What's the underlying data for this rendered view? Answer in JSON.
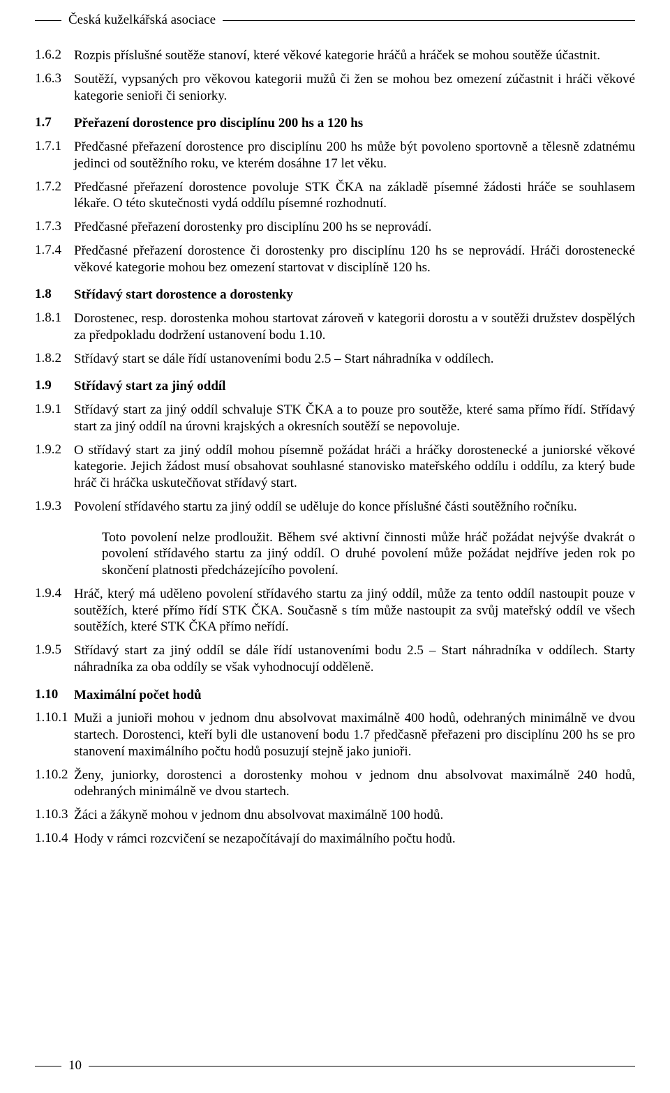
{
  "header": {
    "org": "Česká kuželkářská asociace"
  },
  "items": [
    {
      "num": "1.6.2",
      "text": "Rozpis příslušné soutěže stanoví, které věkové kategorie hráčů a hráček se mohou soutěže účastnit.",
      "style": "normal"
    },
    {
      "num": "1.6.3",
      "text": "Soutěží, vypsaných pro věkovou kategorii mužů či žen se mohou bez omezení zúčastnit i hráči věkové kategorie senioři či seniorky.",
      "style": "normal"
    },
    {
      "num": "1.7",
      "text": "Přeřazení dorostence pro disciplínu 200 hs a 120 hs",
      "style": "bold heading"
    },
    {
      "num": "1.7.1",
      "text": "Předčasné přeřazení dorostence pro disciplínu 200 hs může být povoleno sportovně a tělesně zdatnému jedinci od soutěžního roku, ve kterém dosáhne 17 let věku.",
      "style": "normal"
    },
    {
      "num": "1.7.2",
      "text": "Předčasné přeřazení dorostence povoluje STK ČKA na základě písemné žádosti hráče se souhlasem lékaře. O této skutečnosti vydá oddílu písemné rozhodnutí.",
      "style": "normal"
    },
    {
      "num": "1.7.3",
      "text": "Předčasné přeřazení dorostenky pro disciplínu 200 hs se neprovádí.",
      "style": "normal"
    },
    {
      "num": "1.7.4",
      "text": "Předčasné přeřazení dorostence či dorostenky pro disciplínu 120 hs se neprovádí. Hráči dorostenecké věkové kategorie mohou bez omezení startovat v disciplíně 120 hs.",
      "style": "normal"
    },
    {
      "num": "1.8",
      "text": "Střídavý start dorostence a dorostenky",
      "style": "bold heading"
    },
    {
      "num": "1.8.1",
      "text": "Dorostenec, resp. dorostenka mohou startovat zároveň v kategorii dorostu a v soutěži družstev dospělých za předpokladu dodržení ustanovení bodu 1.10.",
      "style": "normal"
    },
    {
      "num": "1.8.2",
      "text": "Střídavý start se dále řídí ustanoveními bodu 2.5 – Start náhradníka v oddílech.",
      "style": "normal"
    },
    {
      "num": "1.9",
      "text": "Střídavý start za jiný oddíl",
      "style": "bold heading"
    },
    {
      "num": "1.9.1",
      "text": "Střídavý start za jiný oddíl schvaluje STK ČKA a to pouze pro soutěže, které sama přímo řídí. Střídavý start za jiný oddíl na úrovni krajských a okresních soutěží se nepovoluje.",
      "style": "normal"
    },
    {
      "num": "1.9.2",
      "text": "O střídavý start za jiný oddíl mohou písemně požádat hráči a hráčky dorostenecké a juniorské věkové kategorie. Jejich žádost musí obsahovat souhlasné stanovisko mateřského oddílu i oddílu, za který bude hráč či hráčka uskutečňovat střídavý start.",
      "style": "normal"
    },
    {
      "num": "1.9.3",
      "text": "Povolení střídavého startu za jiný oddíl se uděluje do konce příslušné části soutěžního ročníku.",
      "style": "normal",
      "innerIndent": "Toto povolení nelze prodloužit. Během své aktivní činnosti může hráč požádat nejvýše dvakrát o povolení střídavého startu za jiný oddíl. O druhé povolení může požádat nejdříve jeden rok po skončení platnosti předcházejícího povolení."
    },
    {
      "num": "1.9.4",
      "text": "Hráč, který má uděleno povolení střídavého startu za jiný oddíl, může za tento oddíl nastoupit pouze v soutěžích, které přímo řídí STK ČKA. Současně s tím může nastoupit za svůj mateřský oddíl ve všech soutěžích, které STK ČKA přímo neřídí.",
      "style": "normal"
    },
    {
      "num": "1.9.5",
      "text": "Střídavý start za jiný oddíl se dále řídí ustanoveními bodu 2.5 – Start náhradníka v oddílech. Starty náhradníka za oba oddíly se však vyhodnocují odděleně.",
      "style": "normal"
    },
    {
      "num": "1.10",
      "text": "Maximální počet hodů",
      "style": "bold heading"
    },
    {
      "num": "1.10.1",
      "text": "Muži a junioři mohou v jednom dnu absolvovat maximálně 400 hodů, odehraných minimálně ve dvou startech. Dorostenci, kteří byli dle ustanovení bodu 1.7 předčasně přeřazeni pro disciplínu 200 hs se pro stanovení maximálního počtu hodů posuzují stejně jako junioři.",
      "style": "normal"
    },
    {
      "num": "1.10.2",
      "text": "Ženy, juniorky, dorostenci a dorostenky mohou v jednom dnu absolvovat maximálně 240 hodů, odehraných minimálně ve dvou startech.",
      "style": "normal"
    },
    {
      "num": "1.10.3",
      "text": "Žáci a žákyně mohou v jednom dnu absolvovat maximálně 100 hodů.",
      "style": "normal"
    },
    {
      "num": "1.10.4",
      "text": "Hody v rámci rozcvičení se nezapočítávají do maximálního počtu hodů.",
      "style": "normal"
    }
  ],
  "footer": {
    "page": "10"
  },
  "colors": {
    "text": "#000000",
    "background": "#ffffff",
    "line": "#000000"
  },
  "typography": {
    "family": "Times New Roman",
    "size_pt": 14,
    "line_height": 1.25
  }
}
